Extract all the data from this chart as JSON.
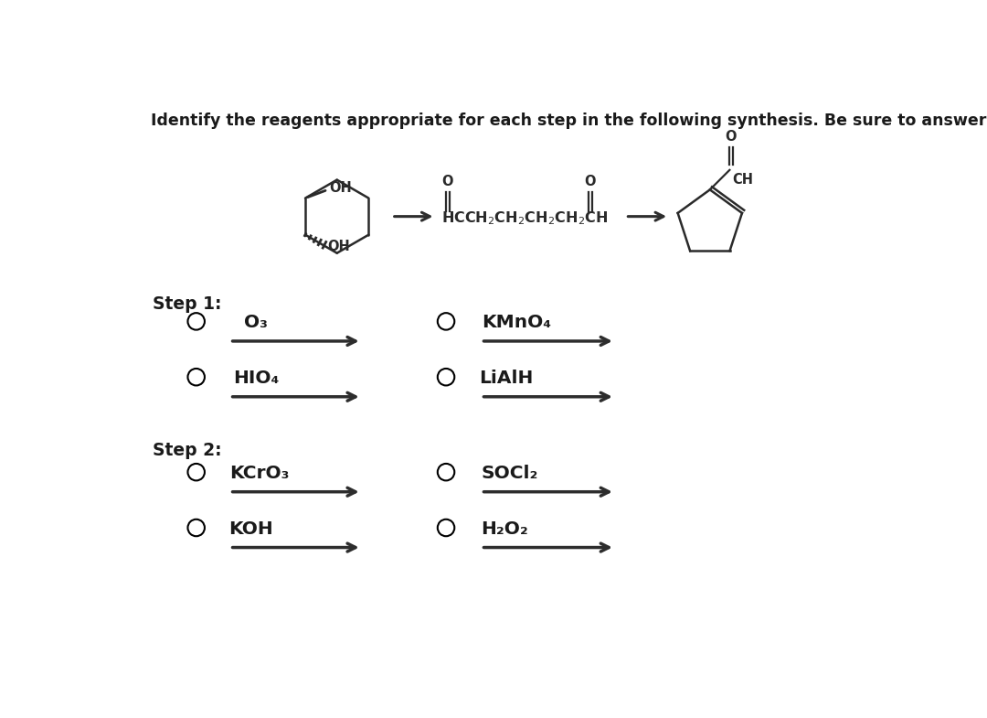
{
  "title": "Identify the reagents appropriate for each step in the following synthesis. Be sure to answer all parts.",
  "title_fontsize": 12.5,
  "title_fontweight": "bold",
  "background_color": "#ffffff",
  "step1_label": "Step 1:",
  "step2_label": "Step 2:",
  "text_color": "#1a1a1a",
  "option_fontsize": 14.5,
  "label_fontsize": 13.5,
  "col0_options": [
    "O₃",
    "HIO₄",
    "KCrO₃",
    "KOH"
  ],
  "col1_options": [
    "KMnO₄",
    "LiAlH",
    "SOCl₂",
    "H₂O₂"
  ]
}
